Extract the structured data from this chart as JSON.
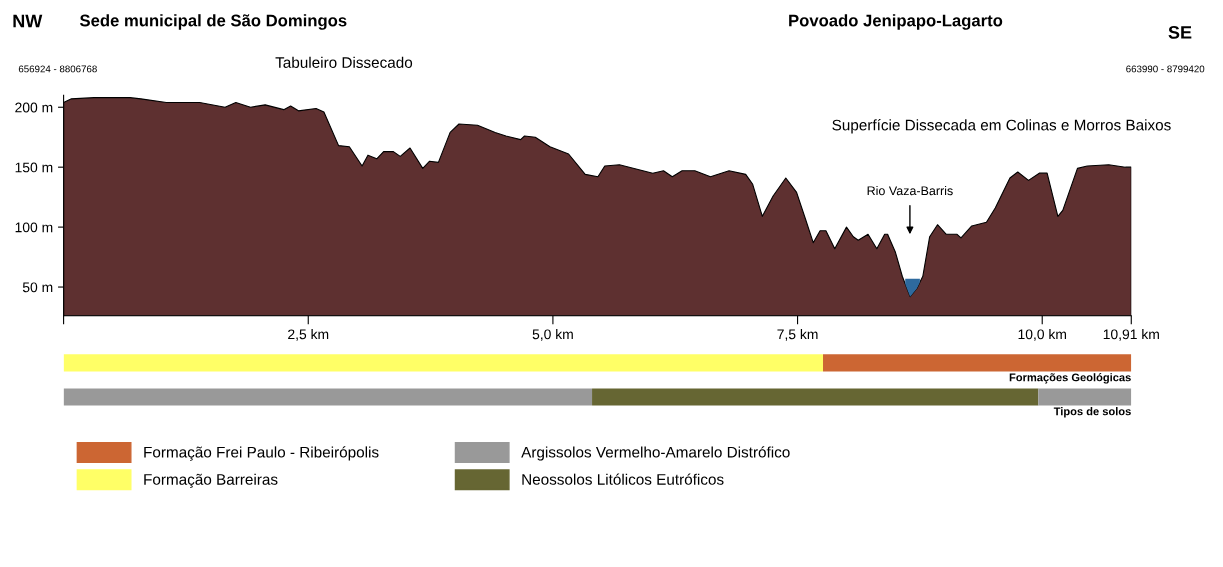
{
  "chart_data": [
    {
      "type": "area",
      "xlim": [
        0,
        10.91
      ],
      "ylim": [
        26,
        210
      ],
      "xticks": [
        {
          "value": 0,
          "label": null
        },
        {
          "value": 2.5,
          "label": "2,5 km"
        },
        {
          "value": 5.0,
          "label": "5,0 km"
        },
        {
          "value": 7.5,
          "label": "7,5 km"
        },
        {
          "value": 10.0,
          "label": "10,0 km"
        },
        {
          "value": 10.91,
          "label": "10,91 km"
        }
      ],
      "yticks": [
        {
          "value": 50,
          "label": "50 m"
        },
        {
          "value": 100,
          "label": "100 m"
        },
        {
          "value": 150,
          "label": "150 m"
        },
        {
          "value": 200,
          "label": "200 m"
        }
      ],
      "grid": false,
      "series": [
        {
          "color": "#5e3030",
          "x": [
            0.0,
            0.08,
            0.31,
            0.68,
            0.79,
            1.05,
            1.39,
            1.65,
            1.76,
            1.91,
            2.06,
            2.25,
            2.32,
            2.4,
            2.58,
            2.66,
            2.81,
            2.92,
            3.05,
            3.11,
            3.2,
            3.27,
            3.37,
            3.44,
            3.54,
            3.67,
            3.74,
            3.83,
            3.95,
            4.04,
            4.23,
            4.41,
            4.52,
            4.67,
            4.71,
            4.82,
            4.97,
            5.16,
            5.33,
            5.46,
            5.53,
            5.68,
            6.02,
            6.13,
            6.22,
            6.32,
            6.45,
            6.61,
            6.8,
            6.97,
            7.04,
            7.14,
            7.25,
            7.38,
            7.49,
            7.58,
            7.66,
            7.73,
            7.79,
            7.88,
            8.0,
            8.07,
            8.12,
            8.22,
            8.31,
            8.39,
            8.42,
            8.5,
            8.57,
            8.65,
            8.72,
            8.78,
            8.85,
            8.93,
            9.02,
            9.13,
            9.17,
            9.28,
            9.43,
            9.52,
            9.67,
            9.75,
            9.86,
            9.97,
            10.05,
            10.16,
            10.21,
            10.36,
            10.46,
            10.68,
            10.85,
            10.91
          ],
          "values": [
            204,
            207,
            208,
            208,
            207,
            204,
            204,
            200,
            204,
            200,
            202,
            198,
            201,
            197,
            199,
            196,
            168,
            167,
            151,
            160,
            157,
            163,
            163,
            159,
            166,
            149,
            155,
            154,
            179,
            186,
            185,
            179,
            176,
            173,
            176,
            175,
            167,
            161,
            144,
            142,
            151,
            152,
            145,
            147,
            142,
            147,
            147,
            142,
            147,
            144,
            136,
            109,
            126,
            141,
            129,
            107,
            87,
            97,
            97,
            82,
            100,
            92,
            89,
            94,
            82,
            94,
            94,
            79,
            59,
            42,
            49,
            59,
            92,
            102,
            94,
            94,
            91,
            101,
            104,
            116,
            141,
            146,
            139,
            145,
            145,
            109,
            114,
            149,
            151,
            152,
            150,
            150
          ]
        },
        {
          "color": "#2e6a9e",
          "x": [
            8.57,
            8.6,
            8.65,
            8.7,
            8.75,
            8.78
          ],
          "values": [
            57,
            57,
            57,
            57,
            57,
            57
          ]
        }
      ],
      "annotations": [
        "NW",
        "Sede municipal de São Domingos",
        "656924 - 8806768",
        "Tabuleiro Dissecado",
        "Povoado Jenipapo-Lagarto",
        "SE",
        "663990 - 8799420",
        "Superfície Dissecada em Colinas e Morros Baixos",
        "Rio Vaza-Barris"
      ]
    },
    {
      "type": "bar",
      "orientation": "horizontal",
      "stacked": true,
      "xlim": [
        0,
        10.91
      ],
      "legend": "bottom",
      "categories": [
        "Formações Geológicas",
        "Tipos de solos"
      ],
      "series": [
        {
          "name": "Formação Barreiras",
          "color": "#ffff66",
          "values": [
            7.76,
            null
          ]
        },
        {
          "name": "Formação Frei Paulo - Ribeirópolis",
          "color": "#cc6633",
          "values": [
            3.15,
            null
          ]
        },
        {
          "name": "Argissolos Vermelho-Amarelo Distrófico",
          "color": "#999999",
          "values": [
            null,
            5.4
          ]
        },
        {
          "name": "Neossolos Litólicos Eutróficos",
          "color": "#666633",
          "values": [
            null,
            4.56
          ]
        },
        {
          "color": "#999999",
          "values": [
            null,
            0.95
          ]
        }
      ]
    }
  ]
}
